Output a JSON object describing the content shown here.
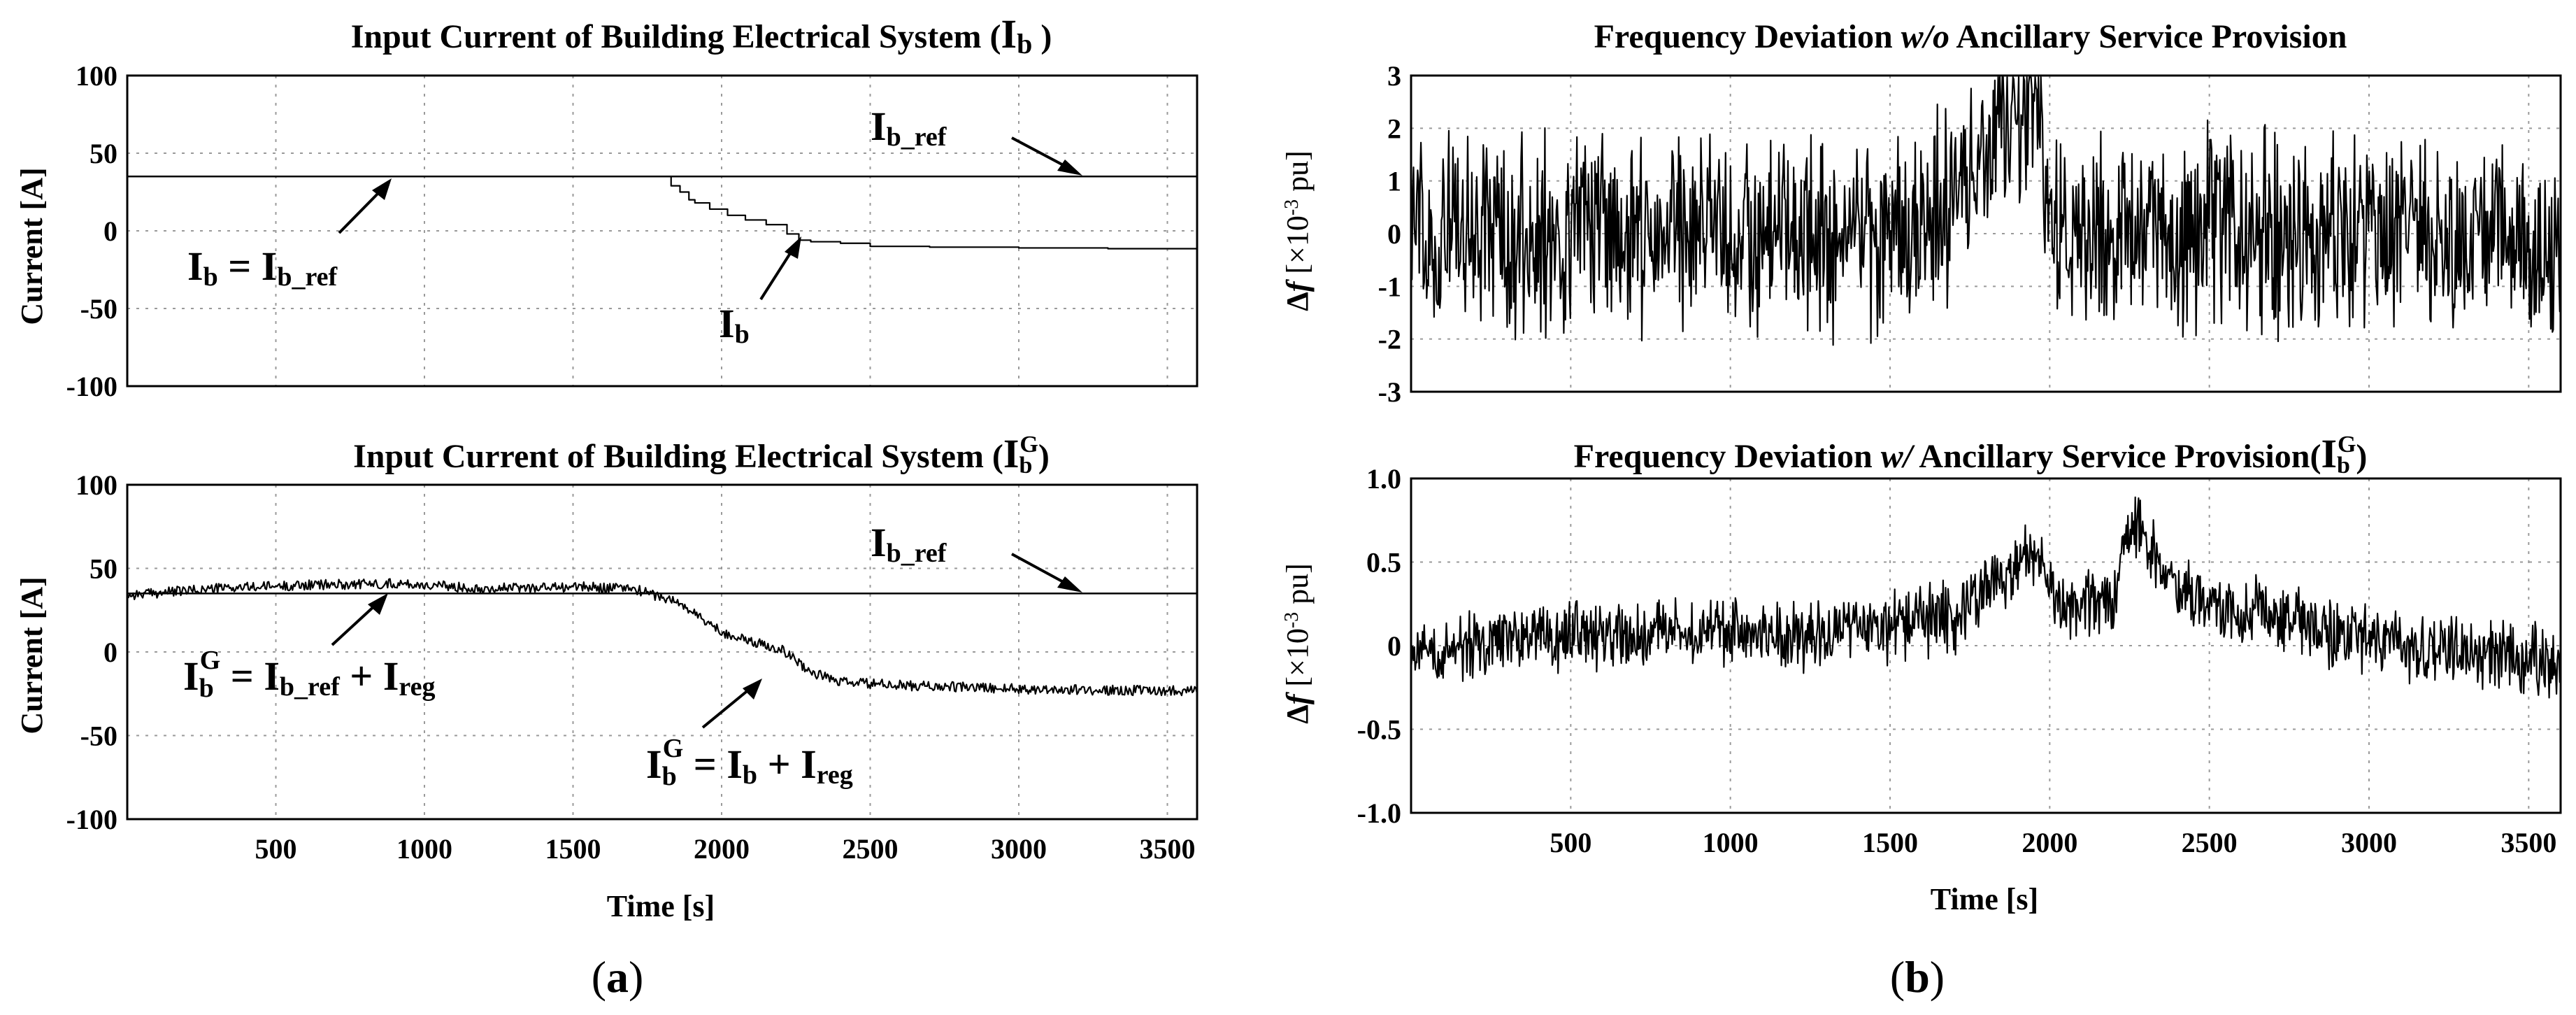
{
  "chart_data": [
    {
      "type": "line",
      "panel": "a-top",
      "title": "Input Current of Building Electrical System (Ib )",
      "title_main": "Input Current of Building Electrical System (",
      "title_sym": "I",
      "title_sub": "b",
      "title_close": " )",
      "xlabel": "",
      "ylabel": "Current [A]",
      "xlim": [
        0,
        3600
      ],
      "ylim": [
        -100,
        100
      ],
      "yticks": [
        "100",
        "50",
        "0",
        "-50",
        "-100"
      ],
      "ytick_values": [
        100,
        50,
        0,
        -50,
        -100
      ],
      "xticks": [],
      "series": [
        {
          "name": "Ib_ref",
          "x": [
            0,
            3600
          ],
          "values": [
            35,
            35
          ]
        },
        {
          "name": "Ib",
          "x": [
            0,
            1820,
            1830,
            1860,
            1890,
            1910,
            1960,
            2020,
            2080,
            2150,
            2220,
            2260,
            2300,
            2400,
            2500,
            2700,
            3000,
            3300,
            3600
          ],
          "values": [
            35,
            35,
            29,
            25,
            20,
            18,
            14,
            10,
            7,
            4,
            -2,
            -6,
            -7,
            -8,
            -10,
            -10.5,
            -11,
            -11.5,
            -12
          ]
        }
      ],
      "annotations": {
        "ref_label": {
          "sym": "I",
          "sub": "b_ref"
        },
        "eq_label": {
          "left_sym": "I",
          "left_sub": "b",
          "eq": " = ",
          "right_sym": "I",
          "right_sub": "b_ref"
        },
        "ib_label": {
          "sym": "I",
          "sub": "b"
        }
      }
    },
    {
      "type": "line",
      "panel": "a-bottom",
      "title": "Input Current of Building Electrical System (Ib G)",
      "title_main": "Input Current of Building Electrical System (",
      "title_sym": "I",
      "title_sub": "b",
      "title_sup": "G",
      "title_close": ")",
      "xlabel": "Time [s]",
      "ylabel": "Current [A]",
      "xlim": [
        0,
        3600
      ],
      "ylim": [
        -100,
        100
      ],
      "yticks": [
        "100",
        "50",
        "0",
        "-50",
        "-100"
      ],
      "ytick_values": [
        100,
        50,
        0,
        -50,
        -100
      ],
      "xticks": [
        "500",
        "1000",
        "1500",
        "2000",
        "2500",
        "3000",
        "3500"
      ],
      "xtick_values": [
        500,
        1000,
        1500,
        2000,
        2500,
        3000,
        3500
      ],
      "series": [
        {
          "name": "Ib_ref",
          "x": [
            0,
            3600
          ],
          "values": [
            35,
            35
          ]
        },
        {
          "name": "IbG",
          "x": [
            0,
            300,
            600,
            900,
            1200,
            1500,
            1700,
            1850,
            1950,
            2000,
            2100,
            2200,
            2300,
            2400,
            2600,
            2800,
            3000,
            3300,
            3600
          ],
          "values": [
            34,
            38,
            40,
            41,
            38,
            39,
            38,
            30,
            18,
            12,
            6,
            2,
            -12,
            -18,
            -20,
            -21,
            -22,
            -23,
            -23
          ]
        }
      ],
      "annotations": {
        "ref_label": {
          "sym": "I",
          "sub": "b_ref"
        },
        "eq1": {
          "sym": "I",
          "sub": "b",
          "sup": "G",
          "eq": " = ",
          "r1_sym": "I",
          "r1_sub": "b_ref",
          "plus": " + ",
          "r2_sym": "I",
          "r2_sub": "reg"
        },
        "eq2": {
          "sym": "I",
          "sub": "b",
          "sup": "G",
          "eq": " = ",
          "r1_sym": "I",
          "r1_sub": "b",
          "plus": " + ",
          "r2_sym": "I",
          "r2_sub": "reg"
        }
      }
    },
    {
      "type": "line",
      "panel": "b-top",
      "title": "Frequency Deviation w/o Ancillary Service Provision",
      "title_a": "Frequency Deviation ",
      "title_italic": "w/o",
      "title_b": " Ancillary Service Provision",
      "xlabel": "",
      "ylabel": "Δf [×10⁻³ pu]",
      "ylabel_sym": "Δ",
      "ylabel_var": "f",
      "ylabel_unit_a": " [×10",
      "ylabel_exp": "-3",
      "ylabel_unit_b": " pu]",
      "xlim": [
        0,
        3600
      ],
      "ylim": [
        -3,
        3
      ],
      "yticks": [
        "3",
        "2",
        "1",
        "0",
        "-1",
        "-2",
        "-3"
      ],
      "ytick_values": [
        3,
        2,
        1,
        0,
        -1,
        -2,
        -3
      ],
      "xticks": [],
      "series": [
        {
          "name": "Δf",
          "x": [
            0,
            1600,
            1950,
            1970,
            2000,
            2400,
            3600
          ],
          "values": [
            0,
            0,
            2.5,
            2.9,
            0,
            0,
            0
          ],
          "noise_amplitude": 2.2
        }
      ]
    },
    {
      "type": "line",
      "panel": "b-bottom",
      "title": "Frequency Deviation w/ Ancillary Service Provision(Ib G)",
      "title_a": "Frequency Deviation ",
      "title_italic": "w/",
      "title_b": " Ancillary Service Provision(",
      "title_sym": "I",
      "title_sub": "b",
      "title_sup": "G",
      "title_close": ")",
      "xlabel": "Time [s]",
      "ylabel": "Δf [×10⁻³ pu]",
      "ylabel_sym": "Δ",
      "ylabel_var": "f",
      "ylabel_unit_a": " [×10",
      "ylabel_exp": "-3",
      "ylabel_unit_b": " pu]",
      "xlim": [
        0,
        3600
      ],
      "ylim": [
        -1.0,
        1.0
      ],
      "yticks": [
        "1.0",
        "0.5",
        "0",
        "-0.5",
        "-1.0"
      ],
      "ytick_values": [
        1.0,
        0.5,
        0,
        -0.5,
        -1.0
      ],
      "xticks": [
        "500",
        "1000",
        "1500",
        "2000",
        "2500",
        "3000",
        "3500"
      ],
      "xtick_values": [
        500,
        1000,
        1500,
        2000,
        2500,
        3000,
        3500
      ],
      "series": [
        {
          "name": "Δf",
          "x": [
            0,
            400,
            800,
            1100,
            1400,
            1700,
            1950,
            2050,
            2200,
            2260,
            2400,
            2800,
            3200,
            3600
          ],
          "values": [
            -0.05,
            0.05,
            0.08,
            0.05,
            0.08,
            0.18,
            0.55,
            0.2,
            0.3,
            0.75,
            0.3,
            0.12,
            -0.02,
            -0.1
          ],
          "noise_amplitude": 0.25
        }
      ]
    }
  ],
  "panel_labels": {
    "a": {
      "open": "(",
      "letter": "a",
      "close": ")"
    },
    "b": {
      "open": "(",
      "letter": "b",
      "close": ")"
    }
  }
}
